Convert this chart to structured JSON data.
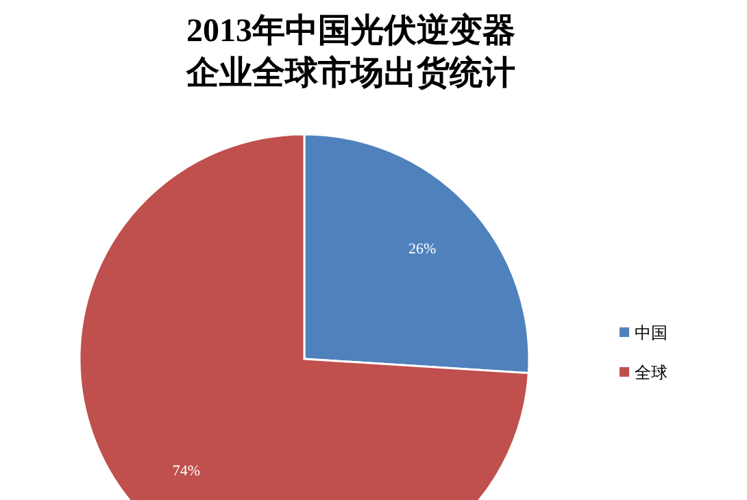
{
  "chart_data": {
    "type": "pie",
    "title": "2013年中国光伏逆变器企业全球市场出货统计",
    "categories": [
      "中国",
      "全球"
    ],
    "values": [
      26,
      74
    ],
    "colors": [
      "#4f81bd",
      "#c0504d"
    ],
    "value_labels": [
      "26%",
      "74%"
    ],
    "legend": "right"
  }
}
